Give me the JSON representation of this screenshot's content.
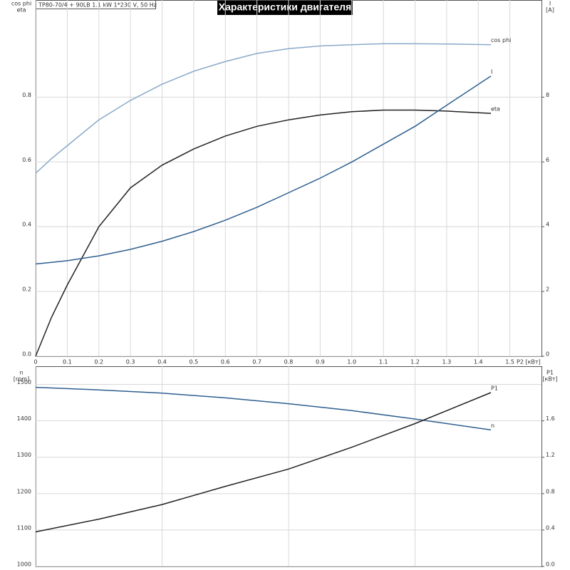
{
  "chart_data": [
    {
      "type": "line",
      "title": "Характеристики двигателя",
      "subtitle": "TP80-70/4 + 90LB   1.1 kW   1*230 V, 50 Hz",
      "ylabel": [
        "cos phi",
        "eta"
      ],
      "y2label": [
        "I",
        "[A]"
      ],
      "xlabel": "P2 [кВт]",
      "x": [
        0,
        0.05,
        0.1,
        0.2,
        0.3,
        0.4,
        0.5,
        0.6,
        0.7,
        0.8,
        0.9,
        1.0,
        1.1,
        1.2,
        1.3,
        1.44
      ],
      "series": [
        {
          "name": "cos phi",
          "color": "#8aa9c8",
          "values": [
            0.565,
            0.61,
            0.65,
            0.73,
            0.79,
            0.84,
            0.88,
            0.91,
            0.935,
            0.95,
            0.958,
            0.962,
            0.965,
            0.965,
            0.964,
            0.962
          ]
        },
        {
          "name": "eta",
          "color": "#222222",
          "values": [
            0,
            0.12,
            0.22,
            0.4,
            0.52,
            0.59,
            0.64,
            0.68,
            0.71,
            0.73,
            0.745,
            0.755,
            0.76,
            0.76,
            0.757,
            0.75
          ]
        },
        {
          "name": "I",
          "color": "#2e5f8f",
          "axis": "y2",
          "values": [
            2.85,
            2.9,
            2.95,
            3.1,
            3.3,
            3.55,
            3.85,
            4.2,
            4.6,
            5.05,
            5.5,
            6.0,
            6.55,
            7.1,
            7.75,
            8.65
          ]
        }
      ],
      "xlim": [
        0,
        1.6
      ],
      "xticks": [
        0,
        0.1,
        0.2,
        0.3,
        0.4,
        0.5,
        0.6,
        0.7,
        0.8,
        0.9,
        {
          "value": 1,
          "label": "1.0"
        },
        1.1,
        1.2,
        1.3,
        1.4,
        1.5
      ],
      "ylim": [
        0,
        1.1
      ],
      "yticks": [
        {
          "value": 0,
          "label": "0.0"
        },
        0.2,
        0.4,
        0.6,
        0.8
      ],
      "y2lim": [
        0,
        11
      ],
      "y2ticks": [
        0,
        2,
        4,
        6,
        8
      ],
      "grid": true
    },
    {
      "type": "line",
      "ylabel": [
        "n",
        "[rpm]"
      ],
      "y2label": [
        "P1",
        "[кВт]"
      ],
      "x": [
        0,
        0.2,
        0.4,
        0.6,
        0.8,
        1.0,
        1.2,
        1.44
      ],
      "series": [
        {
          "name": "n",
          "color": "#2e5f8f",
          "values": [
            1492,
            1485,
            1476,
            1463,
            1447,
            1428,
            1405,
            1375
          ]
        },
        {
          "name": "P1",
          "color": "#222222",
          "axis": "y2",
          "values": [
            0.38,
            0.52,
            0.68,
            0.88,
            1.07,
            1.31,
            1.57,
            1.91
          ]
        }
      ],
      "xlim": [
        0,
        1.6
      ],
      "xticks": [
        0,
        0.4,
        0.8,
        1.2
      ],
      "ylim": [
        1000,
        1550
      ],
      "yticks": [
        1000,
        1100,
        1200,
        1300,
        1400,
        1500
      ],
      "y2lim": [
        0,
        2.2
      ],
      "y2ticks": [
        {
          "value": 0,
          "label": "0.0"
        },
        0.4,
        0.8,
        1.2,
        1.6
      ],
      "grid": true
    }
  ]
}
